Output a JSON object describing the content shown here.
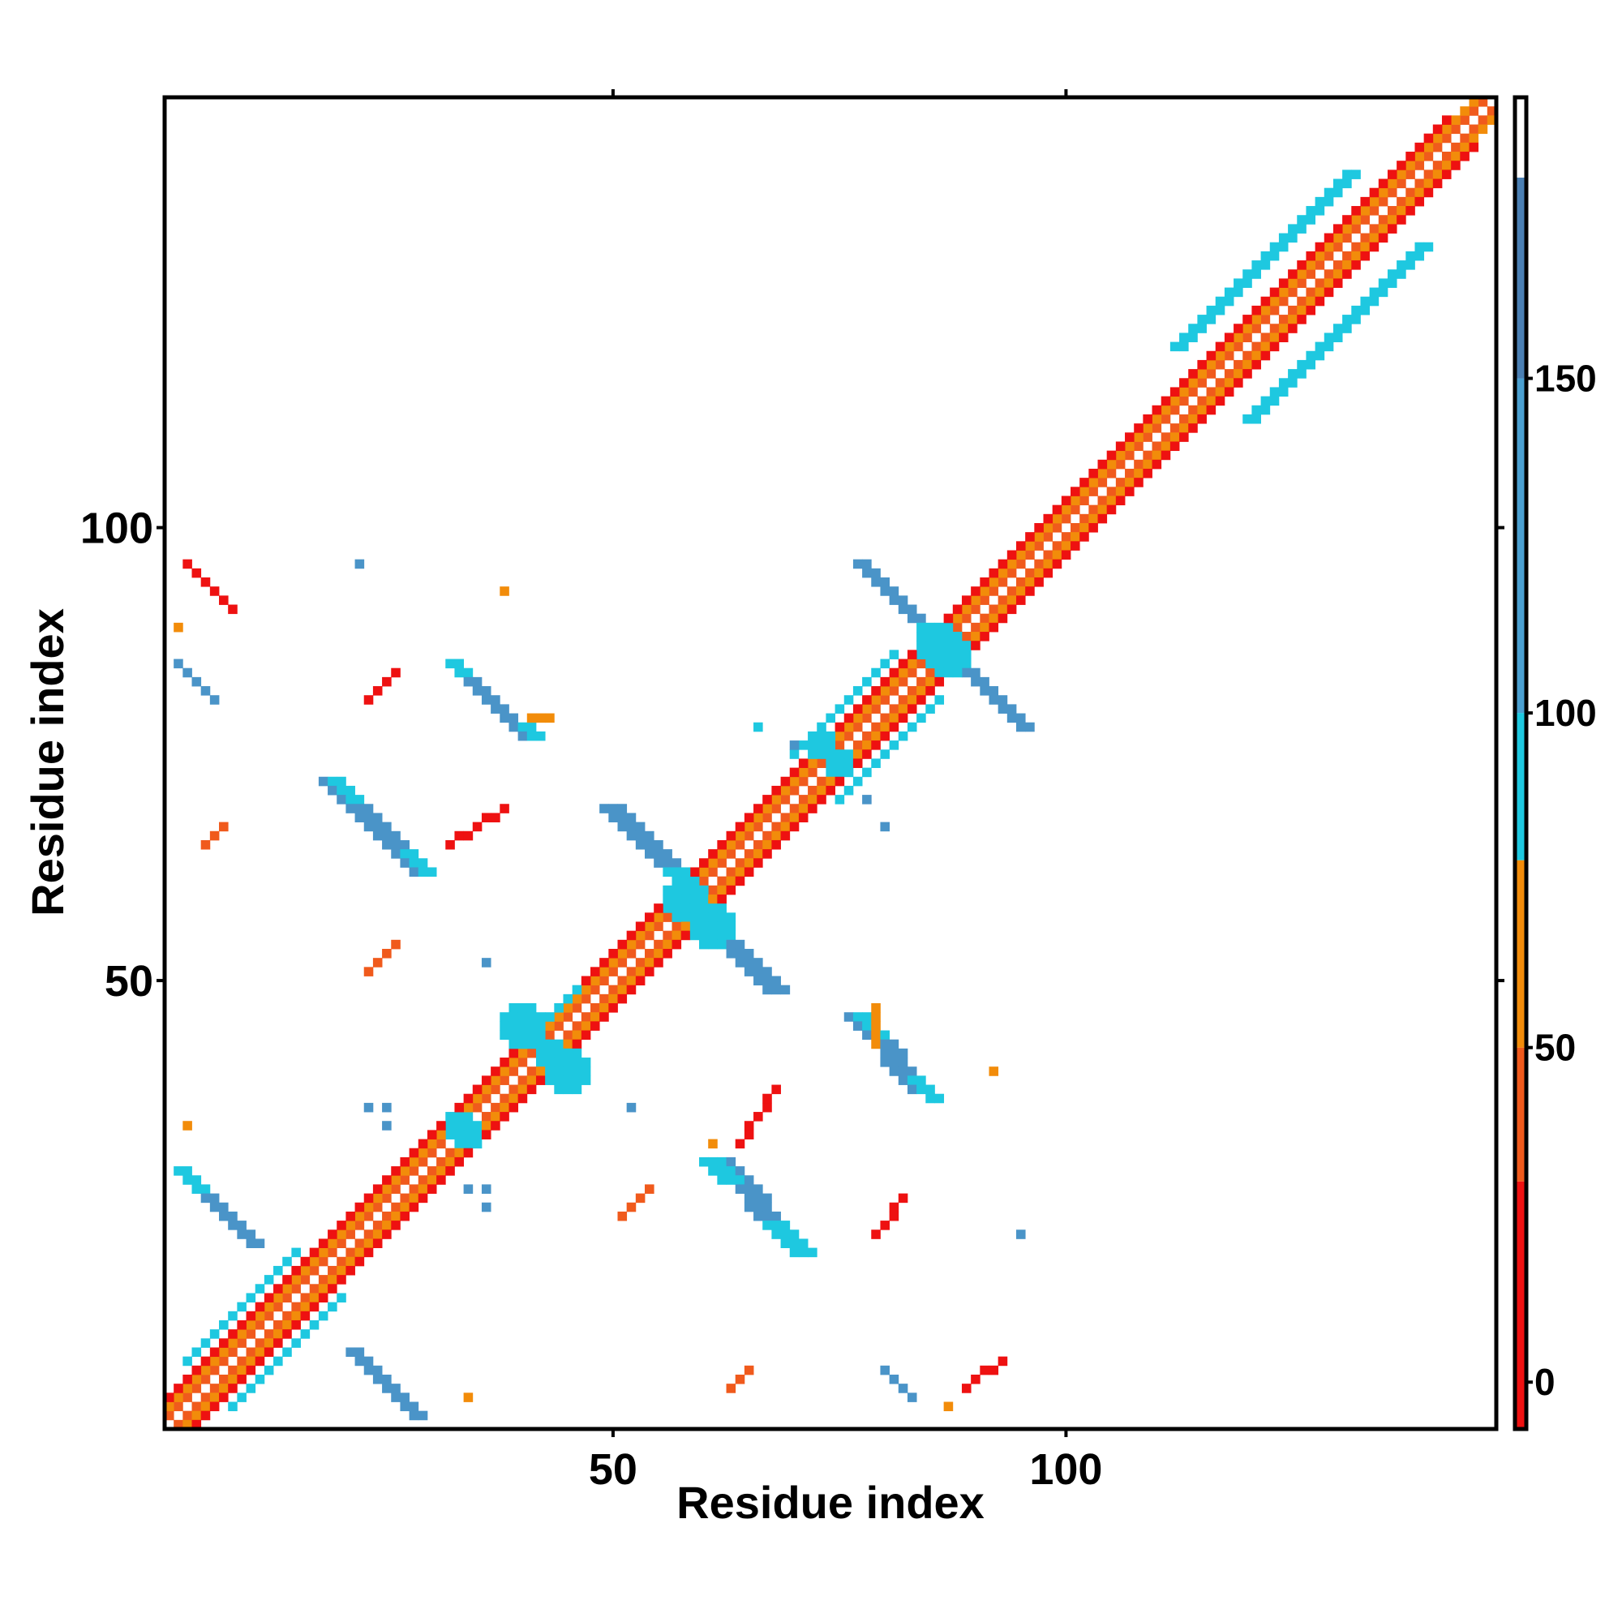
{
  "chart_data": {
    "type": "heatmap",
    "title": "",
    "xlabel": "Residue index",
    "ylabel": "Residue index",
    "xlim": [
      0.5,
      147.5
    ],
    "ylim": [
      0.5,
      147.5
    ],
    "x_ticks": [
      50,
      100
    ],
    "y_ticks": [
      50,
      100
    ],
    "x_tick_labels": [
      "50",
      "100"
    ],
    "y_tick_labels": [
      "50",
      "100"
    ],
    "colorbar": {
      "ticks": [
        0,
        50,
        100,
        150
      ],
      "tick_labels": [
        "0",
        "50",
        "100",
        "150"
      ],
      "range": [
        -7,
        192
      ],
      "bands": [
        {
          "from": -7,
          "to": 30,
          "color": "#ee1111"
        },
        {
          "from": 30,
          "to": 50,
          "color": "#f05a1c"
        },
        {
          "from": 50,
          "to": 78,
          "color": "#f28c0a"
        },
        {
          "from": 78,
          "to": 100,
          "color": "#1ec8e0"
        },
        {
          "from": 100,
          "to": 150,
          "color": "#4a9fd0"
        },
        {
          "from": 150,
          "to": 180,
          "color": "#4a7fb3"
        },
        {
          "from": 180,
          "to": 192,
          "color": "#ffffff"
        }
      ]
    },
    "categories_legend": [
      {
        "key": "r",
        "color": "#ee1111"
      },
      {
        "key": "o",
        "color": "#f05a1c"
      },
      {
        "key": "y",
        "color": "#f28c0a"
      },
      {
        "key": "c",
        "color": "#1ec8e0"
      },
      {
        "key": "b",
        "color": "#4a94c8"
      }
    ],
    "segments": [
      {
        "x1": 1,
        "y1": 1,
        "x2": 147,
        "y2": 147,
        "w": 1,
        "c": "diag"
      },
      {
        "x1": 2,
        "y1": 1,
        "x2": 147,
        "y2": 146,
        "w": 1,
        "c": "o"
      },
      {
        "x1": 1,
        "y1": 2,
        "x2": 146,
        "y2": 147,
        "w": 1,
        "c": "o"
      },
      {
        "x1": 3,
        "y1": 1,
        "x2": 147,
        "y2": 145,
        "w": 1,
        "c": "y"
      },
      {
        "x1": 1,
        "y1": 3,
        "x2": 145,
        "y2": 147,
        "w": 1,
        "c": "y"
      },
      {
        "x1": 4,
        "y1": 1,
        "x2": 145,
        "y2": 142,
        "w": 1,
        "c": "r"
      },
      {
        "x1": 1,
        "y1": 4,
        "x2": 142,
        "y2": 145,
        "w": 1,
        "c": "r"
      },
      {
        "x1": 8,
        "y1": 3,
        "x2": 20,
        "y2": 15,
        "w": 1,
        "c": "c"
      },
      {
        "x1": 3,
        "y1": 8,
        "x2": 15,
        "y2": 20,
        "w": 1,
        "c": "c"
      },
      {
        "x1": 75,
        "y1": 70,
        "x2": 86,
        "y2": 81,
        "w": 1,
        "c": "c"
      },
      {
        "x1": 70,
        "y1": 75,
        "x2": 81,
        "y2": 86,
        "w": 1,
        "c": "c"
      },
      {
        "x1": 120,
        "y1": 112,
        "x2": 139,
        "y2": 131,
        "w": 2,
        "c": "c"
      },
      {
        "x1": 112,
        "y1": 120,
        "x2": 131,
        "y2": 139,
        "w": 2,
        "c": "c"
      },
      {
        "x1": 42,
        "y1": 45,
        "x2": 46,
        "y2": 49,
        "w": 1,
        "c": "c"
      },
      {
        "x1": 2,
        "y1": 29,
        "x2": 10,
        "y2": 21,
        "w": 2,
        "c": "b"
      },
      {
        "x1": 2,
        "y1": 29,
        "x2": 4,
        "y2": 27,
        "w": 2,
        "c": "c"
      },
      {
        "x1": 21,
        "y1": 9,
        "x2": 28,
        "y2": 2,
        "w": 2,
        "c": "b"
      },
      {
        "x1": 19,
        "y1": 72,
        "x2": 29,
        "y2": 62,
        "w": 3,
        "c": "b"
      },
      {
        "x1": 19,
        "y1": 72,
        "x2": 21,
        "y2": 70,
        "w": 2,
        "c": "c"
      },
      {
        "x1": 27,
        "y1": 64,
        "x2": 29,
        "y2": 62,
        "w": 2,
        "c": "c"
      },
      {
        "x1": 32,
        "y1": 85,
        "x2": 40,
        "y2": 77,
        "w": 2,
        "c": "b"
      },
      {
        "x1": 32,
        "y1": 85,
        "x2": 33,
        "y2": 84,
        "w": 2,
        "c": "c"
      },
      {
        "x1": 40,
        "y1": 78,
        "x2": 41,
        "y2": 77,
        "w": 2,
        "c": "c"
      },
      {
        "x1": 50,
        "y1": 69,
        "x2": 57,
        "y2": 62,
        "w": 3,
        "c": "b"
      },
      {
        "x1": 57,
        "y1": 62,
        "x2": 59,
        "y2": 60,
        "w": 3,
        "c": "c"
      },
      {
        "x1": 60,
        "y1": 57,
        "x2": 62,
        "y2": 55,
        "w": 3,
        "c": "c"
      },
      {
        "x1": 62,
        "y1": 55,
        "x2": 68,
        "y2": 49,
        "w": 3,
        "c": "b"
      },
      {
        "x1": 77,
        "y1": 46,
        "x2": 84,
        "y2": 38,
        "w": 3,
        "c": "b"
      },
      {
        "x1": 77,
        "y1": 46,
        "x2": 79,
        "y2": 44,
        "w": 2,
        "c": "c"
      },
      {
        "x1": 83,
        "y1": 39,
        "x2": 85,
        "y2": 37,
        "w": 2,
        "c": "c"
      },
      {
        "x1": 62,
        "y1": 30,
        "x2": 70,
        "y2": 21,
        "w": 3,
        "c": "b"
      },
      {
        "x1": 61,
        "y1": 30,
        "x2": 63,
        "y2": 28,
        "w": 3,
        "c": "c"
      },
      {
        "x1": 68,
        "y1": 23,
        "x2": 71,
        "y2": 20,
        "w": 3,
        "c": "c"
      },
      {
        "x1": 77,
        "y1": 96,
        "x2": 84,
        "y2": 89,
        "w": 2,
        "c": "b"
      },
      {
        "x1": 84,
        "y1": 89,
        "x2": 85,
        "y2": 88,
        "w": 2,
        "c": "c"
      },
      {
        "x1": 88,
        "y1": 85,
        "x2": 89,
        "y2": 84,
        "w": 2,
        "c": "c"
      },
      {
        "x1": 89,
        "y1": 84,
        "x2": 95,
        "y2": 78,
        "w": 2,
        "c": "b"
      },
      {
        "x1": 3,
        "y1": 96,
        "x2": 8,
        "y2": 91,
        "w": 1,
        "c": "r"
      },
      {
        "x1": 2,
        "y1": 85,
        "x2": 6,
        "y2": 81,
        "w": 1,
        "c": "b"
      },
      {
        "x1": 23,
        "y1": 81,
        "x2": 26,
        "y2": 84,
        "w": 1,
        "c": "r"
      },
      {
        "x1": 32,
        "y1": 65,
        "x2": 38,
        "y2": 69,
        "w": 1,
        "c": "r"
      },
      {
        "x1": 5,
        "y1": 65,
        "x2": 7,
        "y2": 67,
        "w": 1,
        "c": "o"
      },
      {
        "x1": 23,
        "y1": 51,
        "x2": 26,
        "y2": 54,
        "w": 1,
        "c": "o"
      },
      {
        "x1": 64,
        "y1": 32,
        "x2": 68,
        "y2": 38,
        "w": 1,
        "c": "r"
      },
      {
        "x1": 51,
        "y1": 24,
        "x2": 54,
        "y2": 27,
        "w": 1,
        "c": "o"
      },
      {
        "x1": 63,
        "y1": 5,
        "x2": 65,
        "y2": 7,
        "w": 1,
        "c": "o"
      },
      {
        "x1": 79,
        "y1": 22,
        "x2": 82,
        "y2": 26,
        "w": 1,
        "c": "r"
      },
      {
        "x1": 89,
        "y1": 5,
        "x2": 93,
        "y2": 8,
        "w": 1,
        "c": "r"
      },
      {
        "x1": 80,
        "y1": 7,
        "x2": 83,
        "y2": 4,
        "w": 1,
        "c": "b"
      },
      {
        "x1": 41,
        "y1": 79,
        "x2": 43,
        "y2": 79,
        "w": 1,
        "c": "y"
      },
      {
        "x1": 79,
        "y1": 43,
        "x2": 79,
        "y2": 47,
        "w": 1,
        "c": "y"
      }
    ],
    "blobs": [
      {
        "x": 58,
        "y": 59,
        "r": 2,
        "c": "c"
      },
      {
        "x": 61,
        "y": 56,
        "r": 2,
        "c": "c"
      },
      {
        "x": 86,
        "y": 87,
        "r": 2,
        "c": "c"
      },
      {
        "x": 87,
        "y": 86,
        "r": 2,
        "c": "c"
      },
      {
        "x": 40,
        "y": 45,
        "r": 2,
        "c": "c"
      },
      {
        "x": 45,
        "y": 40,
        "r": 2,
        "c": "c"
      },
      {
        "x": 43,
        "y": 42,
        "r": 1,
        "c": "c"
      },
      {
        "x": 33,
        "y": 34,
        "r": 1,
        "c": "c"
      },
      {
        "x": 34,
        "y": 33,
        "r": 1,
        "c": "c"
      },
      {
        "x": 73,
        "y": 76,
        "r": 1,
        "c": "c"
      },
      {
        "x": 75,
        "y": 74,
        "r": 1,
        "c": "c"
      }
    ],
    "dots": [
      {
        "x": 22,
        "y": 96,
        "c": "b"
      },
      {
        "x": 38,
        "y": 93,
        "c": "y"
      },
      {
        "x": 2,
        "y": 89,
        "c": "y"
      },
      {
        "x": 66,
        "y": 78,
        "c": "c"
      },
      {
        "x": 70,
        "y": 76,
        "c": "b"
      },
      {
        "x": 78,
        "y": 70,
        "c": "b"
      },
      {
        "x": 80,
        "y": 67,
        "c": "b"
      },
      {
        "x": 36,
        "y": 52,
        "c": "b"
      },
      {
        "x": 23,
        "y": 36,
        "c": "b"
      },
      {
        "x": 25,
        "y": 36,
        "c": "b"
      },
      {
        "x": 25,
        "y": 34,
        "c": "b"
      },
      {
        "x": 3,
        "y": 34,
        "c": "y"
      },
      {
        "x": 52,
        "y": 36,
        "c": "b"
      },
      {
        "x": 34,
        "y": 27,
        "c": "b"
      },
      {
        "x": 36,
        "y": 27,
        "c": "b"
      },
      {
        "x": 36,
        "y": 25,
        "c": "b"
      },
      {
        "x": 95,
        "y": 22,
        "c": "b"
      },
      {
        "x": 92,
        "y": 40,
        "c": "y"
      },
      {
        "x": 34,
        "y": 4,
        "c": "y"
      },
      {
        "x": 87,
        "y": 3,
        "c": "y"
      },
      {
        "x": 61,
        "y": 32,
        "c": "y"
      }
    ]
  }
}
